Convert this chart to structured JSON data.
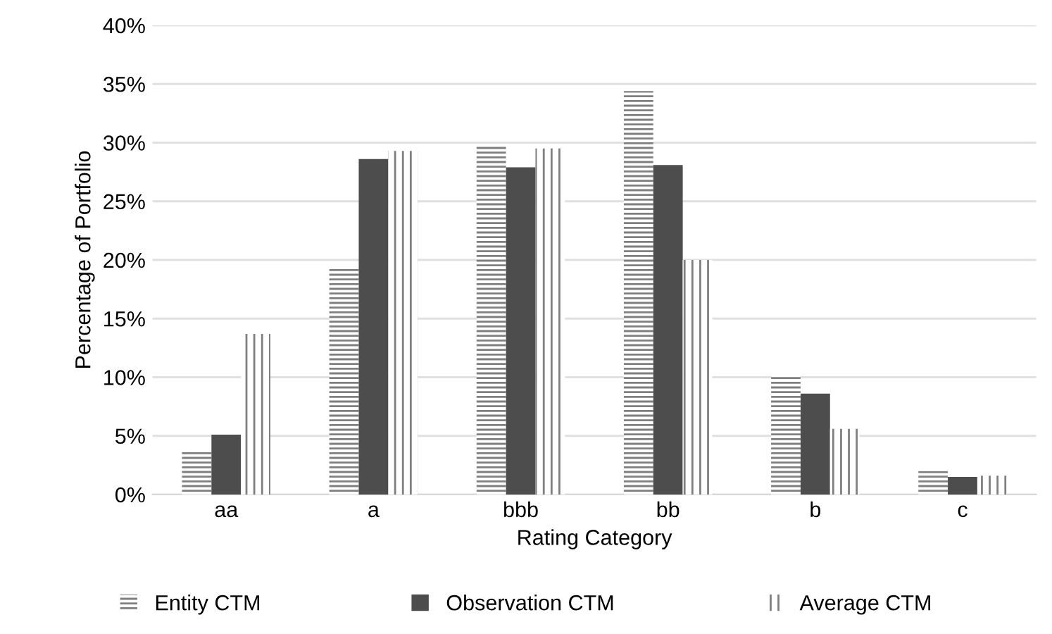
{
  "chart_data": {
    "type": "bar",
    "xlabel": "Rating Category",
    "ylabel": "Percentage of Portfolio",
    "categories": [
      "aa",
      "a",
      "bbb",
      "bb",
      "b",
      "c"
    ],
    "series": [
      {
        "name": "Entity CTM",
        "color": "#7f7f7f",
        "values": [
          3.7,
          19.3,
          29.7,
          34.4,
          10.2,
          2.0
        ]
      },
      {
        "name": "Observation CTM",
        "color": "#4d4d4d",
        "values": [
          5.1,
          28.6,
          27.9,
          28.1,
          8.6,
          1.5
        ]
      },
      {
        "name": "Average CTM",
        "color": "#7f7f7f",
        "values": [
          13.7,
          29.3,
          29.5,
          20.0,
          5.6,
          1.6
        ]
      }
    ],
    "ylim": [
      0,
      40
    ],
    "yticks": [
      {
        "value": 0,
        "label": "0%"
      },
      {
        "value": 5,
        "label": "5%"
      },
      {
        "value": 10,
        "label": "10%"
      },
      {
        "value": 15,
        "label": "15%"
      },
      {
        "value": 20,
        "label": "20%"
      },
      {
        "value": 25,
        "label": "25%"
      },
      {
        "value": 30,
        "label": "30%"
      },
      {
        "value": 35,
        "label": "35%"
      },
      {
        "value": 40,
        "label": "40%"
      }
    ],
    "grid": "y",
    "legend": "bottom"
  }
}
